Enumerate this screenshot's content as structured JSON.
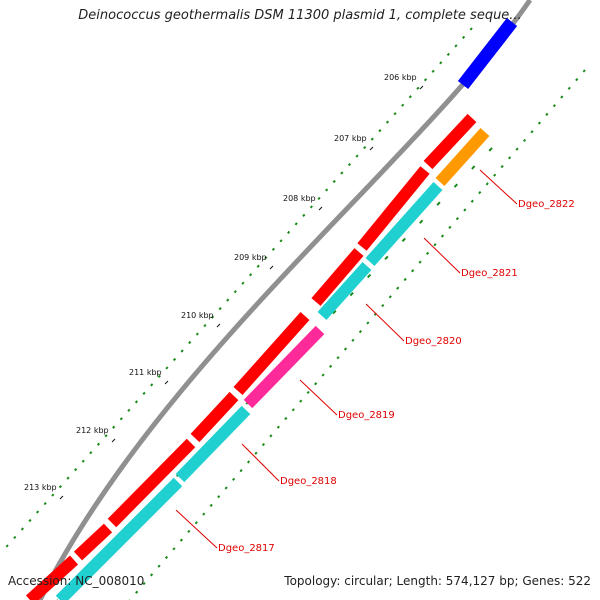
{
  "title": "Deinococcus geothermalis DSM 11300 plasmid 1, complete seque...",
  "footer": {
    "accession": "Accession: NC_008010",
    "info": "Topology: circular; Length: 574,127 bp; Genes: 522"
  },
  "colors": {
    "backbone": "#909090",
    "forward_cds": "#ff0000",
    "reverse_cds": "#20d0d0",
    "other_a": "#0000ff",
    "other_b": "#ff9900",
    "other_c": "#ff2a9a",
    "label": "#e00000",
    "tick": "#1a8a1a"
  },
  "map": {
    "kbp_labels": [
      "206 kbp",
      "207 kbp",
      "208 kbp",
      "209 kbp",
      "210 kbp",
      "211 kbp",
      "212 kbp",
      "213 kbp"
    ],
    "gene_labels": [
      "Dgeo_2822",
      "Dgeo_2821",
      "Dgeo_2820",
      "Dgeo_2819",
      "Dgeo_2818",
      "Dgeo_2817"
    ]
  }
}
